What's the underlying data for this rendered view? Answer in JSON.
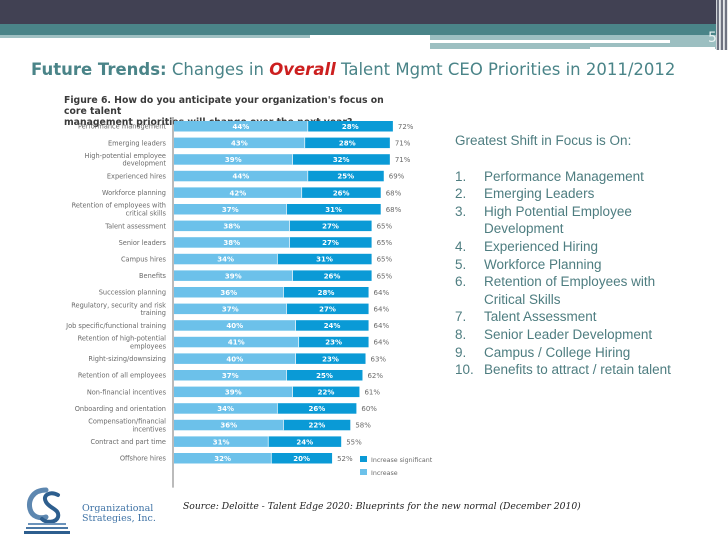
{
  "slide": {
    "number": "5",
    "title": {
      "prefix": "Future Trends:",
      "part1": " Changes in ",
      "highlight": "Overall",
      "part2": " Talent Mgmt CEO Priorities in 2011/2012"
    },
    "colors": {
      "top_bar": "#414153",
      "accent_teal": "#4a8488",
      "highlight_red": "#cc1f1f",
      "bar_increase": "#6cc1ea",
      "bar_increase_significant": "#0a9ad6",
      "side_text": "#4e7d80"
    }
  },
  "figure_title_line1": "Figure 6. How do you anticipate your organization's focus on core talent",
  "figure_title_line2": "management priorities will change over the next year?",
  "chart_data": {
    "type": "bar",
    "orientation": "horizontal",
    "stacked": true,
    "title": "Figure 6. How do you anticipate your organization's focus on core talent management priorities will change over the next year?",
    "xlabel": "",
    "ylabel": "",
    "xlim": [
      0,
      100
    ],
    "grid": false,
    "legend_position": "bottom-right",
    "categories": [
      "Performance management",
      "Emerging leaders",
      "High-potential employee development",
      "Experienced hires",
      "Workforce planning",
      "Retention of employees with critical skills",
      "Talent assessment",
      "Senior leaders",
      "Campus hires",
      "Benefits",
      "Succession planning",
      "Regulatory, security and risk training",
      "Job specific/functional training",
      "Retention of high-potential employees",
      "Right-sizing/downsizing",
      "Retention of all employees",
      "Non-financial incentives",
      "Onboarding and orientation",
      "Compensation/financial incentives",
      "Contract and part time",
      "Offshore hires"
    ],
    "category_label_lines": [
      [
        "Performance management"
      ],
      [
        "Emerging leaders"
      ],
      [
        "High-potential employee",
        "development"
      ],
      [
        "Experienced hires"
      ],
      [
        "Workforce planning"
      ],
      [
        "Retention of employees with",
        "critical skills"
      ],
      [
        "Talent assessment"
      ],
      [
        "Senior leaders"
      ],
      [
        "Campus hires"
      ],
      [
        "Benefits"
      ],
      [
        "Succession planning"
      ],
      [
        "Regulatory, security and risk",
        "training"
      ],
      [
        "Job specific/functional training"
      ],
      [
        "Retention of high-potential",
        "employees"
      ],
      [
        "Right-sizing/downsizing"
      ],
      [
        "Retention of all employees"
      ],
      [
        "Non-financial incentives"
      ],
      [
        "Onboarding and orientation"
      ],
      [
        "Compensation/financial",
        "incentives"
      ],
      [
        "Contract and part time"
      ],
      [
        "Offshore hires"
      ]
    ],
    "series": [
      {
        "name": "Increase",
        "color": "#6cc1ea",
        "values": [
          44,
          43,
          39,
          44,
          42,
          37,
          38,
          38,
          34,
          39,
          36,
          37,
          40,
          41,
          40,
          37,
          39,
          34,
          36,
          31,
          32
        ]
      },
      {
        "name": "Increase significant",
        "color": "#0a9ad6",
        "values": [
          28,
          28,
          32,
          25,
          26,
          31,
          27,
          27,
          31,
          26,
          28,
          27,
          24,
          23,
          23,
          25,
          22,
          26,
          22,
          24,
          20
        ]
      }
    ],
    "totals": [
      72,
      71,
      71,
      69,
      68,
      68,
      65,
      65,
      65,
      65,
      64,
      64,
      64,
      64,
      63,
      62,
      61,
      60,
      58,
      55,
      52
    ],
    "legend": [
      "Increase significant",
      "Increase"
    ]
  },
  "side_panel": {
    "heading": "Greatest Shift in Focus is On:",
    "items": [
      {
        "num": "1.",
        "text": "Performance Management"
      },
      {
        "num": "2.",
        "text": "Emerging Leaders"
      },
      {
        "num": "3.",
        "text": "High Potential Employee Development"
      },
      {
        "num": "4.",
        "text": "Experienced Hiring"
      },
      {
        "num": "5.",
        "text": "Workforce Planning"
      },
      {
        "num": "6.",
        "text": "Retention of Employees with Critical Skills"
      },
      {
        "num": "7.",
        "text": "Talent Assessment"
      },
      {
        "num": "8.",
        "text": "Senior Leader Development"
      },
      {
        "num": "9.",
        "text": "Campus / College Hiring"
      },
      {
        "num": "10.",
        "text": "Benefits to attract / retain talent"
      }
    ]
  },
  "footer": {
    "logo_line1": "Organizational",
    "logo_line2": "Strategies, Inc.",
    "source": "Source: Deloitte - Talent Edge 2020: Blueprints for the new normal (December 2010)"
  }
}
